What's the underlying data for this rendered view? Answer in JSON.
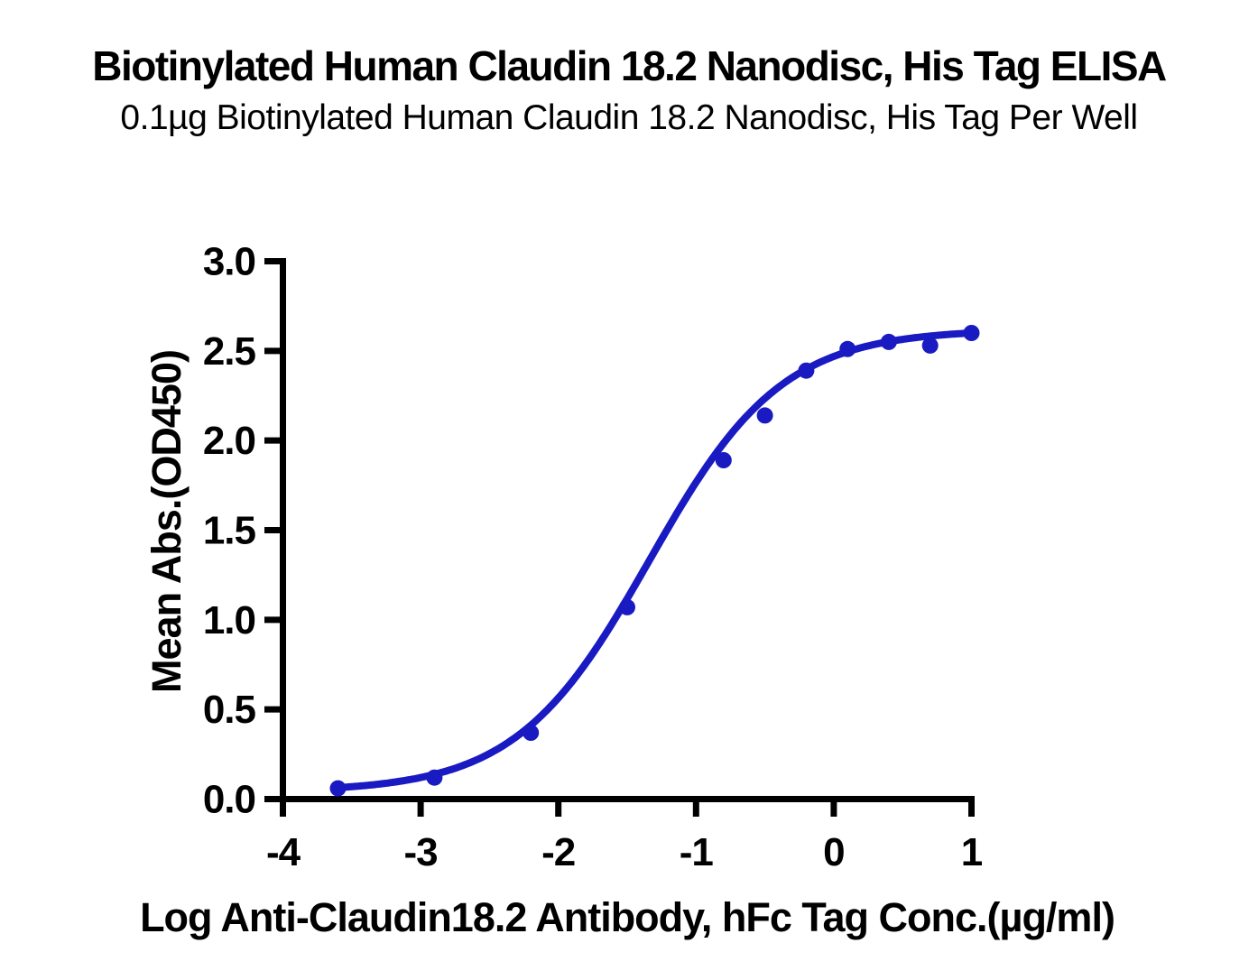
{
  "chart_data": {
    "type": "scatter",
    "title": "Biotinylated Human Claudin 18.2 Nanodisc, His Tag ELISA",
    "subtitle": "0.1µg Biotinylated Human Claudin 18.2 Nanodisc, His Tag Per Well",
    "xlabel": "Log Anti-Claudin18.2 Antibody, hFc Tag Conc.(µg/ml)",
    "ylabel": "Mean Abs.(OD450)",
    "xlim": [
      -4,
      1
    ],
    "ylim": [
      0,
      3
    ],
    "x_tick_labels": [
      "-4",
      "-3",
      "-2",
      "-1",
      "0",
      "1"
    ],
    "y_tick_labels": [
      "0.0",
      "0.5",
      "1.0",
      "1.5",
      "2.0",
      "2.5",
      "3.0"
    ],
    "grid": false,
    "legend": "none",
    "axis_color": "#000000",
    "series": [
      {
        "name": "Anti-Claudin18.2 Antibody, hFc Tag",
        "color": "#1a1ac2",
        "x": [
          -3.6,
          -2.9,
          -2.2,
          -1.5,
          -0.8,
          -0.5,
          -0.2,
          0.1,
          0.4,
          0.7,
          1.0
        ],
        "y": [
          0.06,
          0.12,
          0.37,
          1.07,
          1.89,
          2.14,
          2.39,
          2.51,
          2.55,
          2.53,
          2.6
        ],
        "fit": {
          "model": "4PL",
          "bottom": 0.04,
          "top": 2.62,
          "log_ec50": -1.34,
          "hill": 0.9
        }
      }
    ]
  }
}
